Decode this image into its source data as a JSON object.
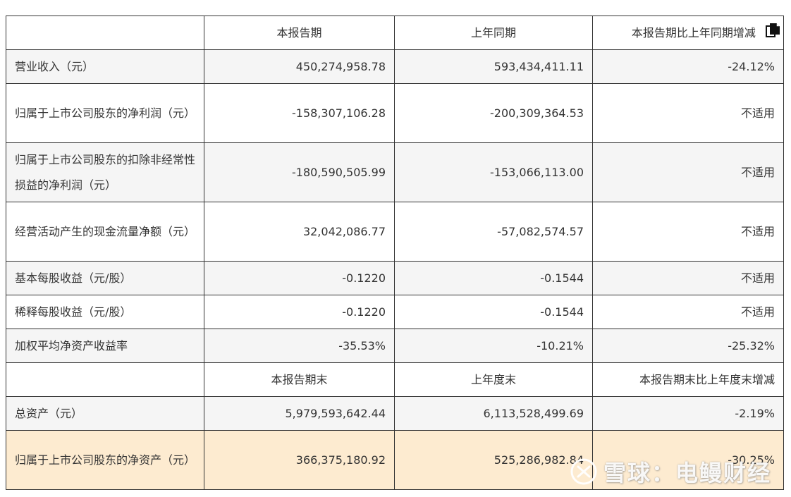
{
  "header": {
    "col1": "",
    "col2": "本报告期",
    "col3": "上年同期",
    "col4": "本报告期比上年同期增减"
  },
  "rows": [
    {
      "label": "营业收入（元）",
      "current": "450,274,958.78",
      "previous": "593,434,411.11",
      "change": "-24.12%"
    },
    {
      "label": "归属于上市公司股东的净利润（元）",
      "current": "-158,307,106.28",
      "previous": "-200,309,364.53",
      "change": "不适用"
    },
    {
      "label": "归属于上市公司股东的扣除非经常性损益的净利润（元）",
      "current": "-180,590,505.99",
      "previous": "-153,066,113.00",
      "change": "不适用"
    },
    {
      "label": "经营活动产生的现金流量净额（元）",
      "current": "32,042,086.77",
      "previous": "-57,082,574.57",
      "change": "不适用"
    },
    {
      "label": "基本每股收益（元/股）",
      "current": "-0.1220",
      "previous": "-0.1544",
      "change": "不适用"
    },
    {
      "label": "稀释每股收益（元/股）",
      "current": "-0.1220",
      "previous": "-0.1544",
      "change": "不适用"
    },
    {
      "label": "加权平均净资产收益率",
      "current": "-35.53%",
      "previous": "-10.21%",
      "change": "-25.32%"
    }
  ],
  "header2": {
    "col1": "",
    "col2": "本报告期末",
    "col3": "上年度末",
    "col4": "本报告期末比上年度末增减"
  },
  "rows2": [
    {
      "label": "总资产（元）",
      "current": "5,979,593,642.44",
      "previous": "6,113,528,499.69",
      "change": "-2.19%"
    },
    {
      "label": "归属于上市公司股东的净资产（元）",
      "current": "366,375,180.92",
      "previous": "525,286,982.84",
      "change": "-30.25%"
    }
  ],
  "watermark": {
    "text": "雪球：电鳗财经",
    "icon": "snowball-logo-icon"
  },
  "icons": {
    "copy": "copy-icon"
  },
  "colors": {
    "highlight_row": "#fdebd0",
    "alt_row": "#f5f5f5",
    "border": "#333333"
  }
}
